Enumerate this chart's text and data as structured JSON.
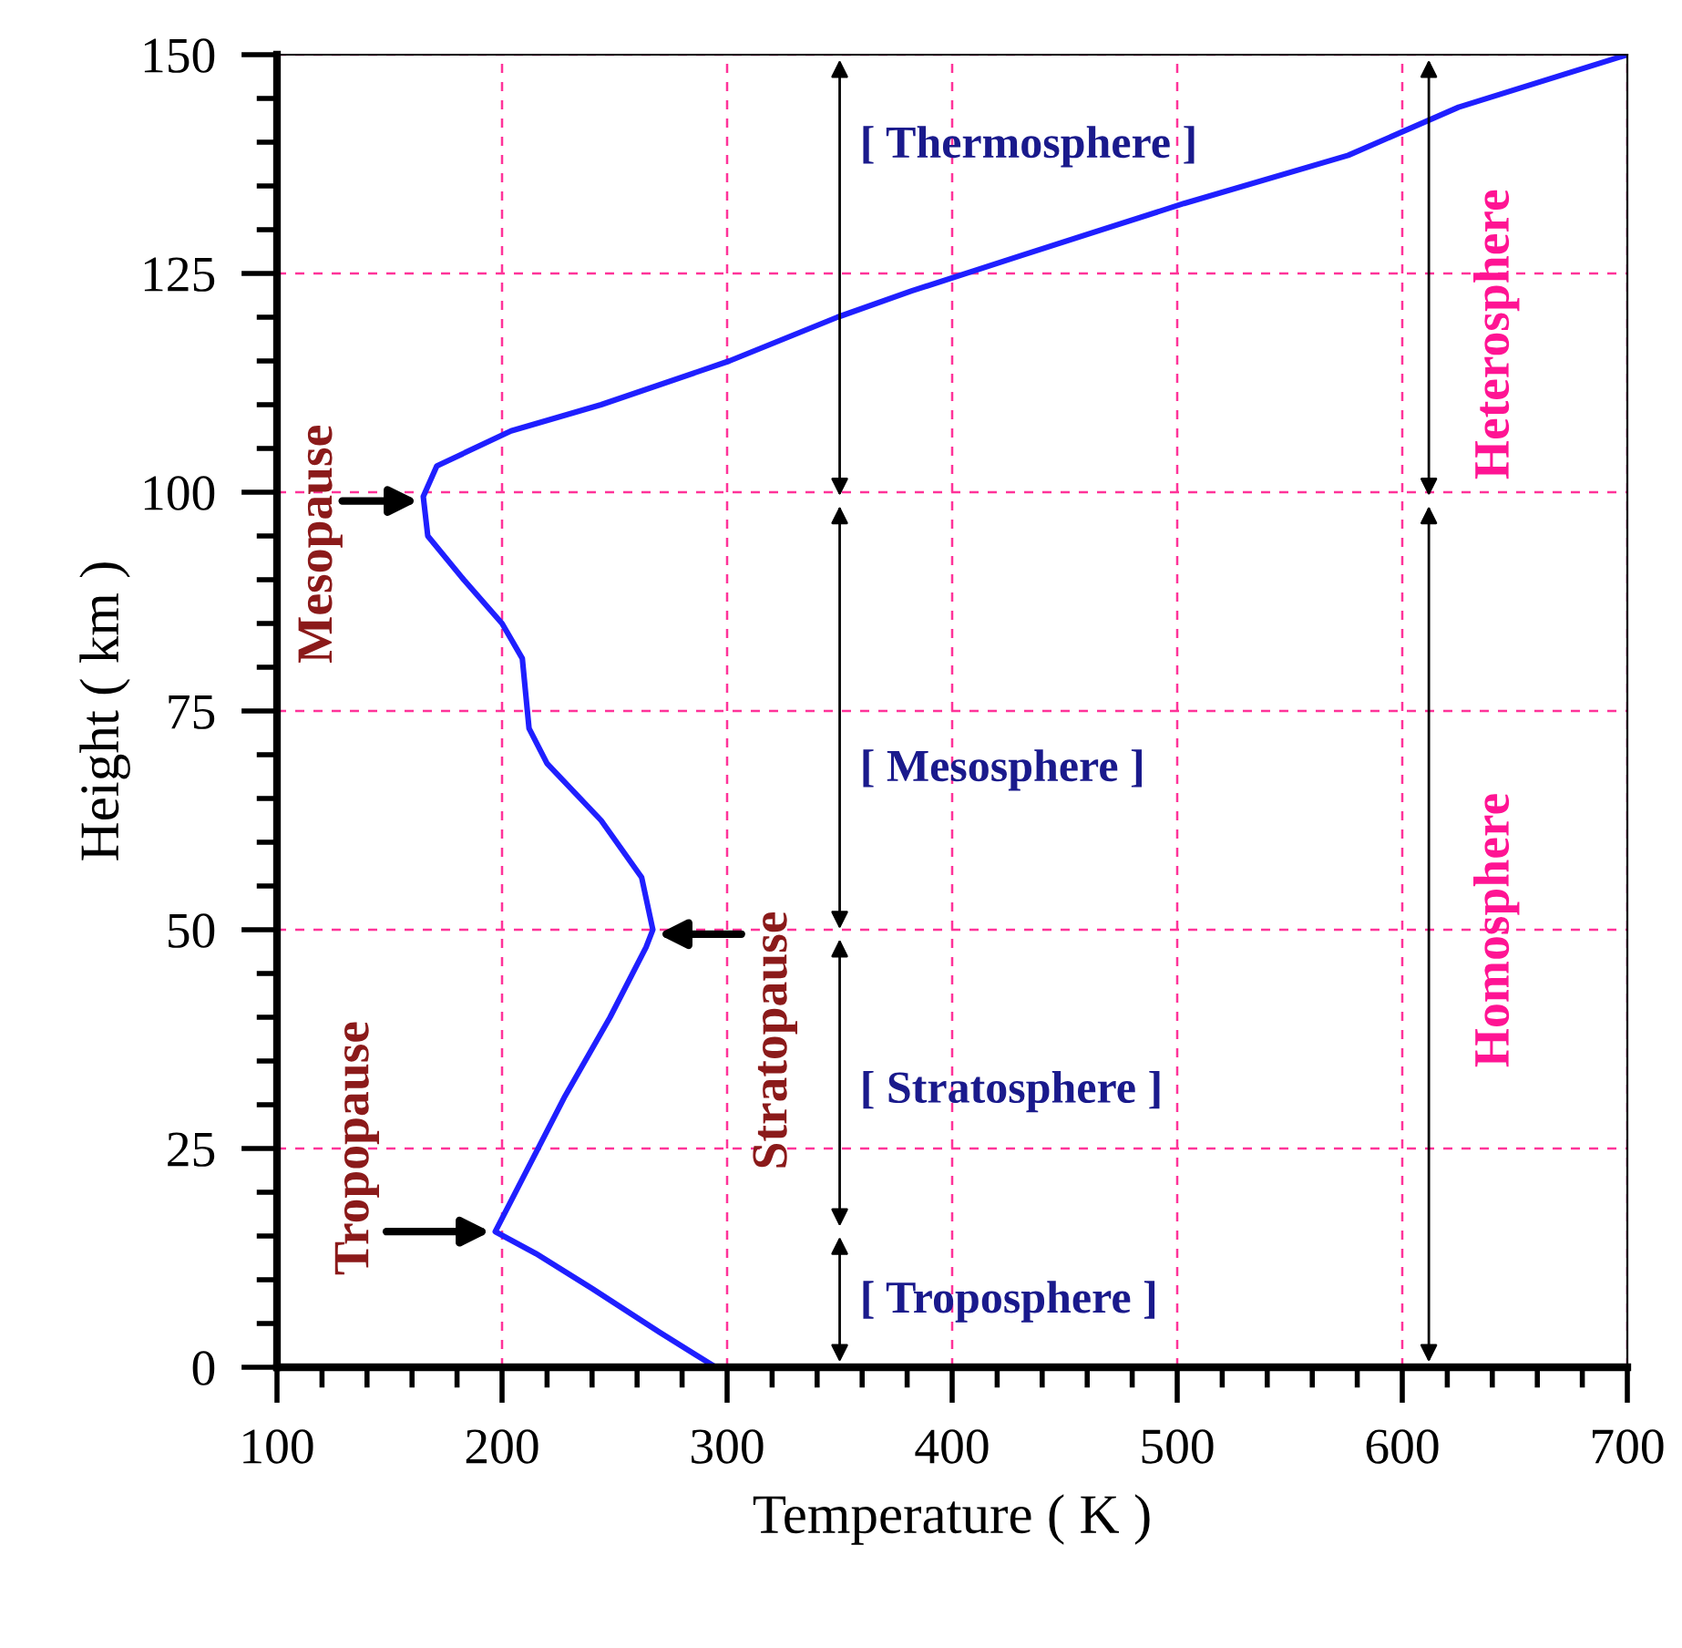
{
  "chart_data": {
    "type": "line",
    "xlabel": "Temperature ( K )",
    "ylabel": "Height ( km )",
    "x": [
      295,
      270,
      240,
      215,
      197,
      212,
      228,
      248,
      264,
      267,
      262,
      244,
      220,
      212,
      209,
      200,
      183,
      167,
      165,
      171,
      204,
      244,
      301,
      349,
      382,
      430,
      503,
      576,
      625,
      700
    ],
    "series": [
      {
        "color": "#1f1fff",
        "values": [
          0,
          4,
          9,
          13,
          15.5,
          23,
          31,
          40,
          48,
          50,
          56,
          62.5,
          69,
          73,
          81,
          85,
          90,
          95,
          99.5,
          103,
          107,
          110,
          115,
          120,
          123,
          127,
          133,
          138.5,
          144,
          150
        ]
      }
    ],
    "xlim": [
      100,
      700
    ],
    "ylim": [
      0,
      150
    ],
    "xticks": [
      100,
      200,
      300,
      400,
      500,
      600,
      700
    ],
    "yticks": [
      0,
      25,
      50,
      75,
      100,
      125,
      150
    ],
    "grid": true,
    "legend": false,
    "marker": "none",
    "line_style": "solid",
    "annotations": [
      {
        "text": "Mesopause",
        "x": 165,
        "y": 99
      },
      {
        "text": "Stratopause",
        "x": 267,
        "y": 49.5
      },
      {
        "text": "Tropopause",
        "x": 197,
        "y": 15.5
      },
      "[ Troposphere ]",
      "[ Stratosphere ]",
      "[ Mesosphere ]",
      "[ Thermosphere ]",
      "Homosphere",
      "Heterosphere"
    ]
  }
}
